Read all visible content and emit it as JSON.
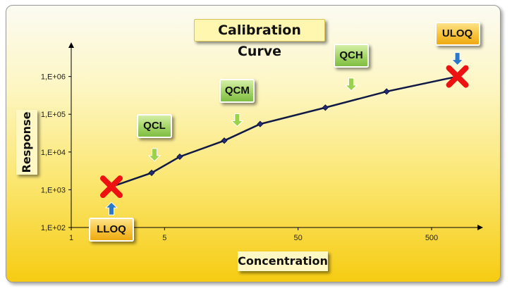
{
  "chart_data": {
    "type": "line",
    "title": "Calibration Curve",
    "xlabel": "Concentration",
    "ylabel": "Response",
    "xscale": "log",
    "yscale": "log",
    "xlim": [
      1,
      1000
    ],
    "ylim": [
      100,
      10000000
    ],
    "x_ticks": [
      {
        "value": 1,
        "label": "1"
      },
      {
        "value": 5,
        "label": "5"
      },
      {
        "value": 50,
        "label": "50"
      },
      {
        "value": 500,
        "label": "500"
      }
    ],
    "y_ticks": [
      {
        "value": 100,
        "label": "1,E+02"
      },
      {
        "value": 1000,
        "label": "1,E+03"
      },
      {
        "value": 10000,
        "label": "1,E+04"
      },
      {
        "value": 100000,
        "label": "1,E+05"
      },
      {
        "value": 1000000,
        "label": "1,E+06"
      }
    ],
    "grid": false,
    "series": [
      {
        "x": [
          2,
          4,
          6.5,
          14,
          26,
          80,
          230,
          780
        ],
        "y": [
          1200,
          2800,
          7500,
          20000,
          55000,
          150000,
          400000,
          1000000
        ],
        "line_color": "#111a45",
        "marker_color": "#232a78"
      }
    ],
    "annotations": [
      {
        "label": "LLOQ",
        "style": "orange",
        "x": 2,
        "y": 1200,
        "crossed": true
      },
      {
        "label": "QCL",
        "style": "green",
        "x": 4.2,
        "y": 3000
      },
      {
        "label": "QCM",
        "style": "green",
        "x": 17.5,
        "y": 25000
      },
      {
        "label": "QCH",
        "style": "green",
        "x": 125,
        "y": 220000
      },
      {
        "label": "ULOQ",
        "style": "orange",
        "x": 780,
        "y": 1000000,
        "crossed": true
      }
    ],
    "colors": {
      "green_arrow": "#9ad24e",
      "blue_arrow": "#2b78c8",
      "cross": "#ee1111"
    }
  }
}
